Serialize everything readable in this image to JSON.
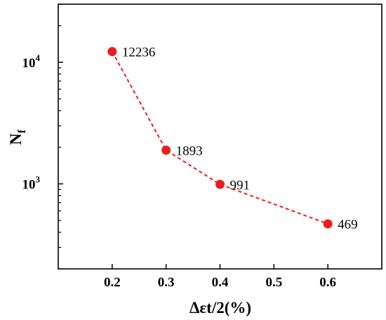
{
  "chart_data": {
    "type": "line",
    "title": "",
    "xlabel": "Δεt/2(%)",
    "ylabel": {
      "base": "N",
      "subscript": "f"
    },
    "x_scale": "linear",
    "y_scale": "log",
    "xlim": [
      0.1,
      0.7
    ],
    "ylim": [
      200,
      30000
    ],
    "x_ticks": [
      {
        "value": 0.2,
        "label": "0.2"
      },
      {
        "value": 0.3,
        "label": "0.3"
      },
      {
        "value": 0.4,
        "label": "0.4"
      },
      {
        "value": 0.5,
        "label": "0.5"
      },
      {
        "value": 0.6,
        "label": "0.6"
      }
    ],
    "y_ticks": [
      {
        "value": 1000,
        "base": "10",
        "exponent": "3"
      },
      {
        "value": 10000,
        "base": "10",
        "exponent": "4"
      }
    ],
    "grid": false,
    "legend": "none",
    "series": [
      {
        "color": "#ee1c1c",
        "line_style": "dashed",
        "marker": "circle",
        "points": [
          {
            "x": 0.2,
            "y": 12236,
            "label": "12236"
          },
          {
            "x": 0.3,
            "y": 1893,
            "label": "1893"
          },
          {
            "x": 0.4,
            "y": 991,
            "label": "991"
          },
          {
            "x": 0.6,
            "y": 469,
            "label": "469"
          }
        ]
      }
    ]
  }
}
